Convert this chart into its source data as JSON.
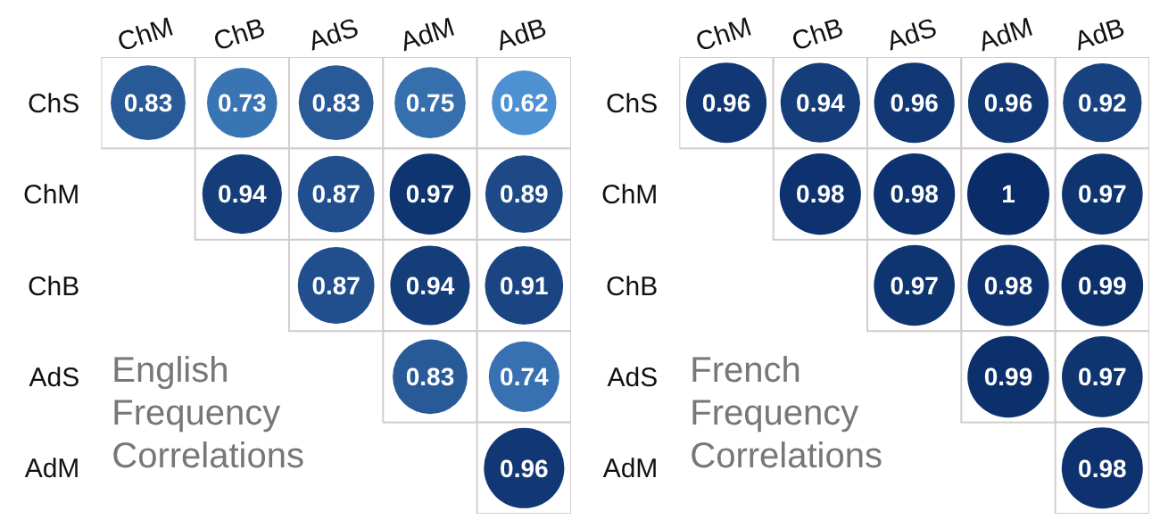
{
  "chart_data": [
    {
      "type": "heatmap",
      "data_labels": true,
      "title": "English Frequency Correlations",
      "categories": [
        "ChM",
        "ChB",
        "AdS",
        "AdM",
        "AdB"
      ],
      "y_categories": [
        "ChS",
        "ChM",
        "ChB",
        "AdS",
        "AdM"
      ],
      "cells": [
        [
          0.83,
          0.73,
          0.83,
          0.75,
          0.62
        ],
        [
          null,
          0.94,
          0.87,
          0.97,
          0.89
        ],
        [
          null,
          null,
          0.87,
          0.94,
          0.91
        ],
        [
          null,
          null,
          null,
          0.83,
          0.74
        ],
        [
          null,
          null,
          null,
          null,
          0.96
        ]
      ]
    },
    {
      "type": "heatmap",
      "data_labels": true,
      "title": "French Frequency Correlations",
      "categories": [
        "ChM",
        "ChB",
        "AdS",
        "AdM",
        "AdB"
      ],
      "y_categories": [
        "ChS",
        "ChM",
        "ChB",
        "AdS",
        "AdM"
      ],
      "cells": [
        [
          0.96,
          0.94,
          0.96,
          0.96,
          0.92
        ],
        [
          null,
          0.98,
          0.98,
          1,
          0.97
        ],
        [
          null,
          null,
          0.97,
          0.98,
          0.99
        ],
        [
          null,
          null,
          null,
          0.99,
          0.97
        ],
        [
          null,
          null,
          null,
          null,
          0.98
        ]
      ]
    }
  ]
}
